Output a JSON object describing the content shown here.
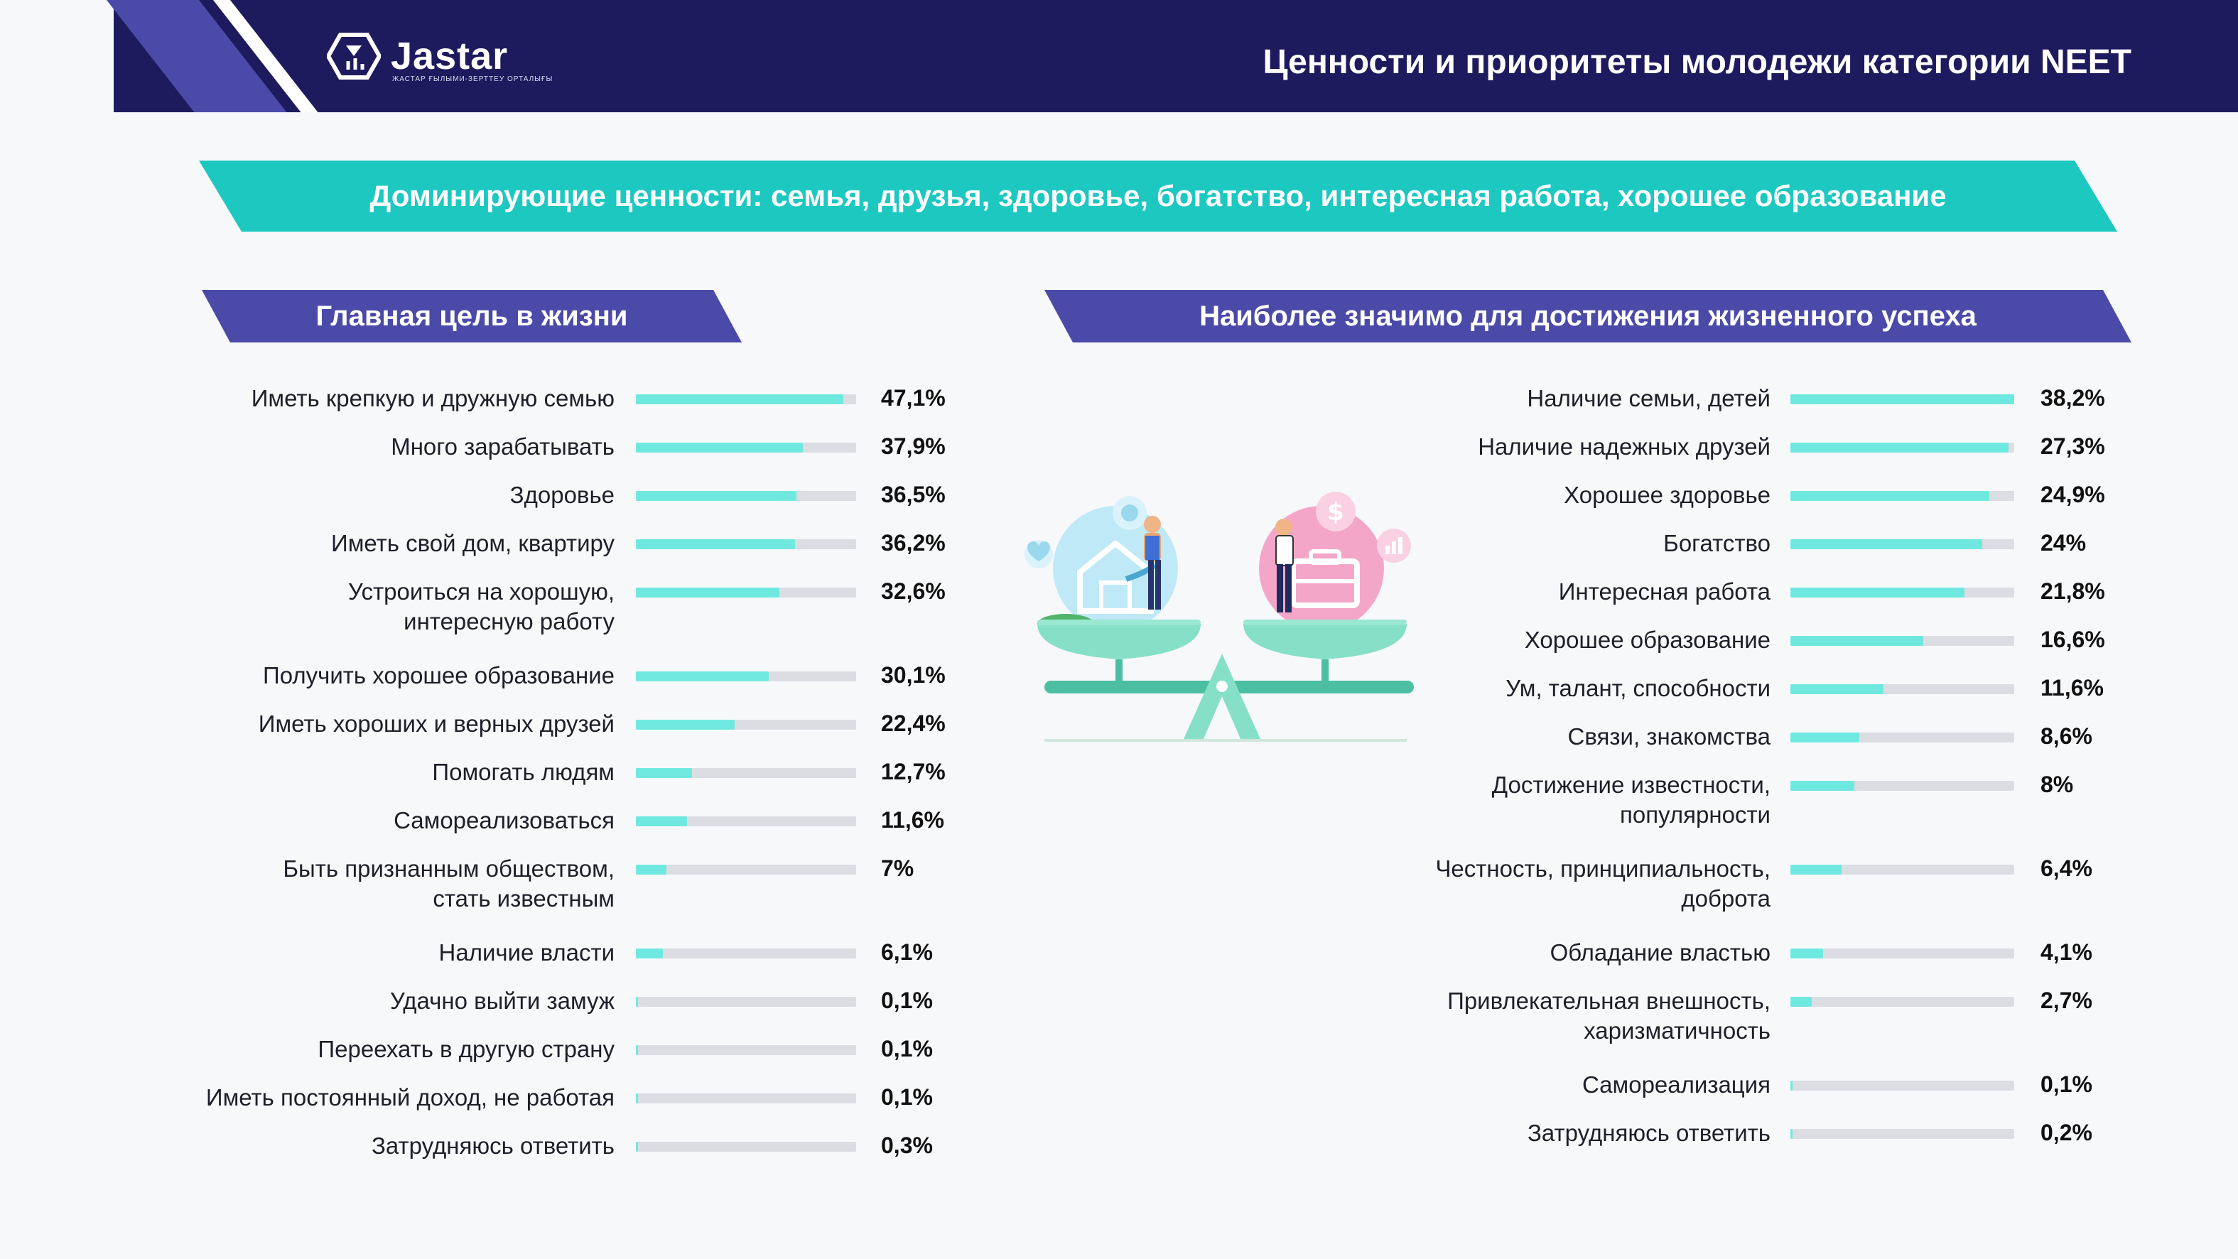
{
  "header": {
    "logo_text": "Jastar",
    "logo_sub": "ЖАСТАР ҒЫЛЫМИ-ЗЕРТТЕУ ОРТАЛЫҒЫ",
    "title": "Ценности и приоритеты молодежи категории NEET"
  },
  "banner": {
    "text": "Доминирующие ценности: семья, друзья, здоровье, богатство, интересная работа, хорошее образование"
  },
  "colors": {
    "navy": "#1d1b5e",
    "purple": "#4b4aa8",
    "teal": "#1cc8c0",
    "bar_fill": "#6fe9e0",
    "bar_track": "#dcdde3"
  },
  "chart_data": [
    {
      "type": "bar",
      "title": "Главная цель в жизни",
      "categories": [
        "Иметь крепкую и дружную семью",
        "Много зарабатывать",
        "Здоровье",
        "Иметь свой дом, квартиру",
        "Устроиться на хорошую, интересную работу",
        "Получить хорошее образование",
        "Иметь хороших и верных друзей",
        "Помогать людям",
        "Самореализоваться",
        "Быть признанным обществом, стать известным",
        "Наличие власти",
        "Удачно выйти замуж",
        "Переехать в другую страну",
        "Иметь постоянный доход, не работая",
        "Затрудняюсь ответить"
      ],
      "label_lines": [
        [
          "Иметь крепкую и дружную семью"
        ],
        [
          "Много зарабатывать"
        ],
        [
          "Здоровье"
        ],
        [
          "Иметь свой дом, квартиру"
        ],
        [
          "Устроиться на хорошую,",
          "интересную работу"
        ],
        [
          "Получить хорошее образование"
        ],
        [
          "Иметь хороших и верных друзей"
        ],
        [
          "Помогать людям"
        ],
        [
          "Самореализоваться"
        ],
        [
          "Быть признанным обществом,",
          "стать известным"
        ],
        [
          "Наличие власти"
        ],
        [
          "Удачно выйти замуж"
        ],
        [
          "Переехать в другую страну"
        ],
        [
          "Иметь постоянный доход, не работая"
        ],
        [
          "Затрудняюсь ответить"
        ]
      ],
      "values": [
        47.1,
        37.9,
        36.5,
        36.2,
        32.6,
        30.1,
        22.4,
        12.7,
        11.6,
        7,
        6.1,
        0.1,
        0.1,
        0.1,
        0.3
      ],
      "value_labels": [
        "47,1%",
        "37,9%",
        "36,5%",
        "36,2%",
        "32,6%",
        "30,1%",
        "22,4%",
        "12,7%",
        "11,6%",
        "7%",
        "6,1%",
        "0,1%",
        "0,1%",
        "0,1%",
        "0,3%"
      ],
      "xlim": [
        0,
        50
      ]
    },
    {
      "type": "bar",
      "title": "Наиболее значимо для достижения жизненного успеха",
      "categories": [
        "Наличие семьи, детей",
        "Наличие надежных друзей",
        "Хорошее здоровье",
        "Богатство",
        "Интересная работа",
        "Хорошее образование",
        "Ум, талант, способности",
        "Связи, знакомства",
        "Достижение известности, популярности",
        "Честность, принципиальность, доброта",
        "Обладание властью",
        "Привлекательная внешность, харизматичность",
        "Самореализация",
        "Затрудняюсь ответить"
      ],
      "label_lines": [
        [
          "Наличие семьи, детей"
        ],
        [
          "Наличие надежных друзей"
        ],
        [
          "Хорошее здоровье"
        ],
        [
          "Богатство"
        ],
        [
          "Интересная работа"
        ],
        [
          "Хорошее образование"
        ],
        [
          "Ум, талант, способности"
        ],
        [
          "Связи, знакомства"
        ],
        [
          "Достижение известности,",
          "популярности"
        ],
        [
          "Честность, принципиальность,",
          "доброта"
        ],
        [
          "Обладание властью"
        ],
        [
          "Привлекательная внешность,",
          "харизматичность"
        ],
        [
          "Самореализация"
        ],
        [
          "Затрудняюсь ответить"
        ]
      ],
      "values": [
        38.2,
        27.3,
        24.9,
        24,
        21.8,
        16.6,
        11.6,
        8.6,
        8,
        6.4,
        4.1,
        2.7,
        0.1,
        0.2
      ],
      "value_labels": [
        "38,2%",
        "27,3%",
        "24,9%",
        "24%",
        "21,8%",
        "16,6%",
        "11,6%",
        "8,6%",
        "8%",
        "6,4%",
        "4,1%",
        "2,7%",
        "0,1%",
        "0,2%"
      ],
      "xlim": [
        0,
        28
      ]
    }
  ]
}
